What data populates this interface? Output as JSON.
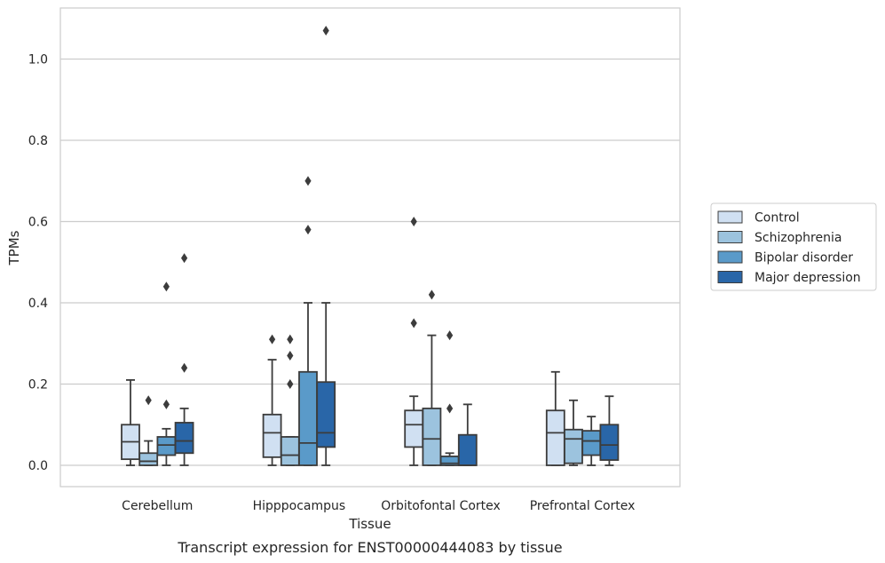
{
  "chart_data": {
    "type": "box",
    "title": "",
    "caption": "Transcript expression for ENST00000444083 by tissue",
    "xlabel": "Tissue",
    "ylabel": "TPMs",
    "ylim": [
      -0.05,
      1.13
    ],
    "yticks": [
      0.0,
      0.2,
      0.4,
      0.6,
      0.8,
      1.0
    ],
    "ytick_labels": [
      "0.0",
      "0.2",
      "0.4",
      "0.6",
      "0.8",
      "1.0"
    ],
    "categories": [
      "Cerebellum",
      "Hipppocampus",
      "Orbitofontal Cortex",
      "Prefrontal Cortex"
    ],
    "grid": "horizontal",
    "legend_position": "right",
    "series": [
      {
        "name": "Control",
        "color": "#d0e0f2",
        "boxes": [
          {
            "whislo": 0.0,
            "q1": 0.015,
            "med": 0.058,
            "q3": 0.1,
            "whishi": 0.21,
            "fliers": []
          },
          {
            "whislo": 0.0,
            "q1": 0.02,
            "med": 0.08,
            "q3": 0.125,
            "whishi": 0.26,
            "fliers": [
              0.31
            ]
          },
          {
            "whislo": 0.0,
            "q1": 0.045,
            "med": 0.1,
            "q3": 0.135,
            "whishi": 0.17,
            "fliers": [
              0.35,
              0.6
            ]
          },
          {
            "whislo": 0.0,
            "q1": 0.0,
            "med": 0.08,
            "q3": 0.135,
            "whishi": 0.23,
            "fliers": []
          }
        ]
      },
      {
        "name": "Schizophrenia",
        "color": "#9cc3de",
        "boxes": [
          {
            "whislo": 0.0,
            "q1": 0.0,
            "med": 0.01,
            "q3": 0.03,
            "whishi": 0.06,
            "fliers": [
              0.16
            ]
          },
          {
            "whislo": 0.0,
            "q1": 0.0,
            "med": 0.025,
            "q3": 0.07,
            "whishi": 0.07,
            "fliers": [
              0.2,
              0.27,
              0.31
            ]
          },
          {
            "whislo": 0.0,
            "q1": 0.0,
            "med": 0.065,
            "q3": 0.14,
            "whishi": 0.32,
            "fliers": [
              0.42
            ]
          },
          {
            "whislo": 0.0,
            "q1": 0.005,
            "med": 0.065,
            "q3": 0.088,
            "whishi": 0.16,
            "fliers": []
          }
        ]
      },
      {
        "name": "Bipolar disorder",
        "color": "#5a9ac9",
        "boxes": [
          {
            "whislo": 0.0,
            "q1": 0.025,
            "med": 0.05,
            "q3": 0.07,
            "whishi": 0.09,
            "fliers": [
              0.15,
              0.44
            ]
          },
          {
            "whislo": 0.0,
            "q1": 0.0,
            "med": 0.055,
            "q3": 0.23,
            "whishi": 0.4,
            "fliers": [
              0.58,
              0.7
            ]
          },
          {
            "whislo": 0.0,
            "q1": 0.0,
            "med": 0.005,
            "q3": 0.022,
            "whishi": 0.03,
            "fliers": [
              0.14,
              0.32
            ]
          },
          {
            "whislo": 0.0,
            "q1": 0.025,
            "med": 0.06,
            "q3": 0.085,
            "whishi": 0.12,
            "fliers": []
          }
        ]
      },
      {
        "name": "Major depression",
        "color": "#2966a8",
        "boxes": [
          {
            "whislo": 0.0,
            "q1": 0.03,
            "med": 0.06,
            "q3": 0.105,
            "whishi": 0.14,
            "fliers": [
              0.24,
              0.51
            ]
          },
          {
            "whislo": 0.0,
            "q1": 0.045,
            "med": 0.08,
            "q3": 0.205,
            "whishi": 0.4,
            "fliers": [
              1.07
            ]
          },
          {
            "whislo": 0.0,
            "q1": 0.0,
            "med": 0.0,
            "q3": 0.075,
            "whishi": 0.15,
            "fliers": []
          },
          {
            "whislo": 0.0,
            "q1": 0.013,
            "med": 0.05,
            "q3": 0.1,
            "whishi": 0.17,
            "fliers": []
          }
        ]
      }
    ]
  }
}
